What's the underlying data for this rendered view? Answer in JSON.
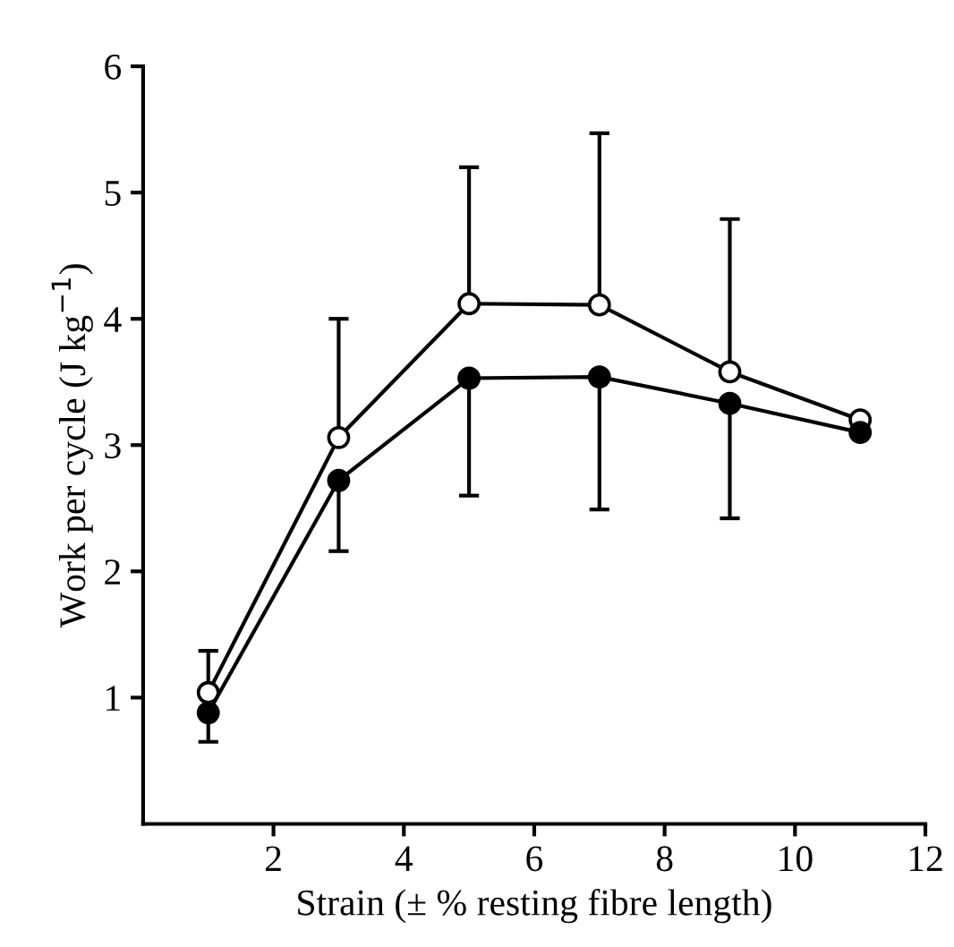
{
  "chart_data": {
    "type": "line",
    "xlabel": "Strain (± % resting fibre length)",
    "ylabel": "Work per cycle (J kg$^{−1}$)",
    "x": [
      1,
      3,
      5,
      7,
      9,
      11
    ],
    "series": [
      {
        "color": "#ffffff",
        "values": [
          1.04,
          3.06,
          4.12,
          4.11,
          3.58,
          3.2
        ],
        "errors": [
          [
            1.04,
            1.37
          ],
          [
            3.06,
            4.0
          ],
          [
            4.12,
            5.2
          ],
          [
            4.11,
            5.47
          ],
          [
            3.58,
            4.79
          ],
          null
        ]
      },
      {
        "color": "#000000",
        "values": [
          0.88,
          2.72,
          3.53,
          3.54,
          3.33,
          3.1
        ],
        "errors": [
          [
            0.65,
            0.88
          ],
          [
            2.16,
            2.72
          ],
          [
            2.6,
            3.53
          ],
          [
            2.49,
            3.54
          ],
          [
            2.42,
            3.33
          ],
          null
        ]
      }
    ],
    "xlim": [
      0,
      12
    ],
    "xticks": [
      2,
      4,
      6,
      8,
      10,
      12
    ],
    "ylim": [
      0,
      6
    ],
    "yticks": [
      1,
      2,
      3,
      4,
      5,
      6
    ],
    "marker": "circle",
    "line_style": "solid",
    "grid": false,
    "legend": false
  }
}
